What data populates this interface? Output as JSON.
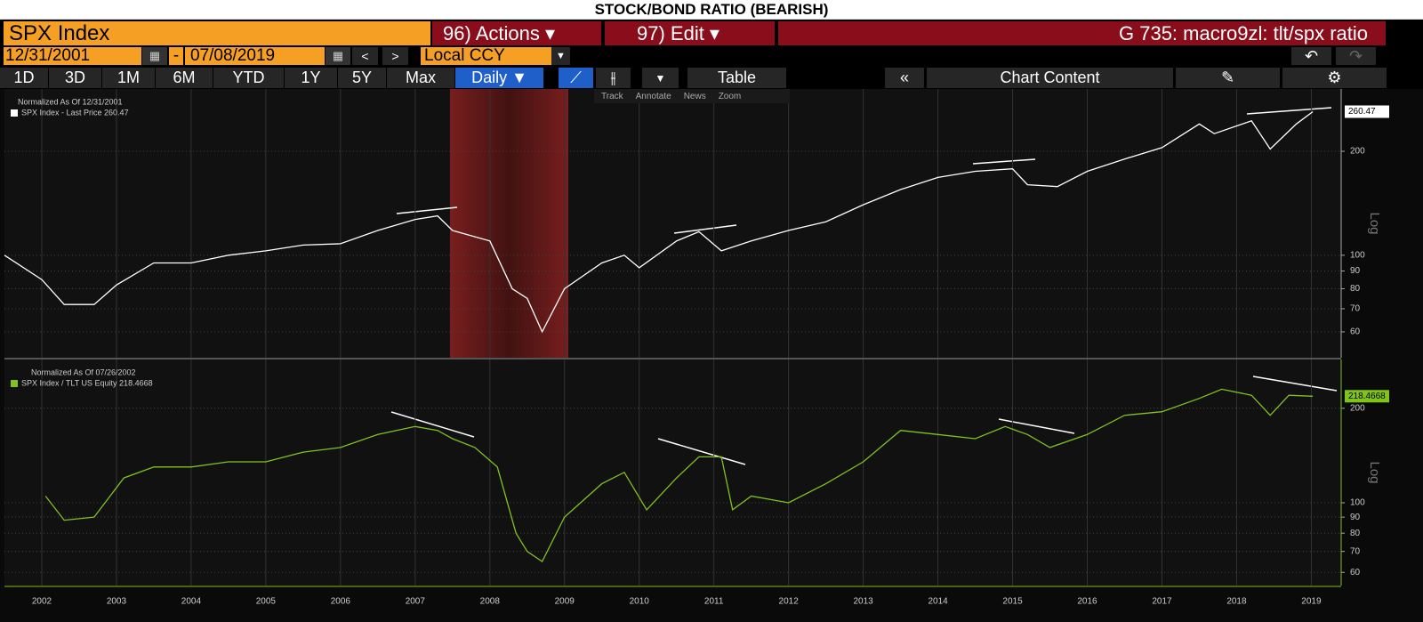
{
  "ui": {
    "title": "STOCK/BOND RATIO (BEARISH)",
    "ticker": "SPX Index",
    "actions": "96) Actions ▾",
    "edit": "97) Edit ▾",
    "function": "G 735: macro9zl: tlt/spx ratio",
    "start_date": "12/31/2001",
    "date_sep": "-",
    "end_date": "07/08/2019",
    "currency": "Local CCY",
    "periods": [
      "1D",
      "3D",
      "1M",
      "6M",
      "YTD",
      "1Y",
      "5Y",
      "Max"
    ],
    "frequency": "Daily ▼",
    "table": "Table",
    "chart_content": "Chart Content",
    "tools": [
      "Track",
      "Annotate",
      "News",
      "Zoom"
    ]
  },
  "chart_data": [
    {
      "type": "line",
      "legend_title": "Normalized As Of 12/31/2001",
      "y_label": "Log",
      "log_y": true,
      "grid": true,
      "xlim": [
        2002.0,
        2019.9
      ],
      "ylim": [
        50.5,
        303
      ],
      "yticks": [
        60,
        70,
        80,
        90,
        100,
        200
      ],
      "last_label": "260.47",
      "x": [
        2002.0,
        2002.5,
        2002.8,
        2003.2,
        2003.5,
        2004.0,
        2004.5,
        2005.0,
        2005.5,
        2006.0,
        2006.5,
        2007.0,
        2007.5,
        2007.8,
        2008.0,
        2008.5,
        2008.8,
        2009.0,
        2009.2,
        2009.5,
        2010.0,
        2010.3,
        2010.5,
        2011.0,
        2011.3,
        2011.6,
        2012.0,
        2012.5,
        2013.0,
        2013.5,
        2014.0,
        2014.5,
        2015.0,
        2015.5,
        2015.7,
        2016.1,
        2016.5,
        2017.0,
        2017.5,
        2018.0,
        2018.2,
        2018.7,
        2018.95,
        2019.3,
        2019.52
      ],
      "series": [
        {
          "name": "SPX Index - Last Price 260.47",
          "color": "#ffffff",
          "values": [
            100,
            85,
            72,
            72,
            82,
            95,
            95,
            100,
            103,
            107,
            108,
            118,
            127,
            130,
            118,
            110,
            80,
            75,
            60,
            80,
            95,
            100,
            92,
            110,
            117,
            103,
            110,
            118,
            125,
            140,
            155,
            168,
            175,
            178,
            160,
            158,
            175,
            190,
            205,
            240,
            225,
            245,
            203,
            240,
            260.47
          ]
        }
      ]
    },
    {
      "type": "line",
      "legend_title": "Normalized As Of 07/26/2002",
      "y_label": "Log",
      "log_y": true,
      "grid": true,
      "xlim": [
        2002.0,
        2019.9
      ],
      "ylim": [
        54.5,
        286
      ],
      "yticks": [
        60,
        70,
        80,
        90,
        100,
        200
      ],
      "xticks": [
        {
          "value": 2002.5,
          "label": "2002"
        },
        {
          "value": 2003.5,
          "label": "2003"
        },
        {
          "value": 2004.5,
          "label": "2004"
        },
        {
          "value": 2005.5,
          "label": "2005"
        },
        {
          "value": 2006.5,
          "label": "2006"
        },
        {
          "value": 2007.5,
          "label": "2007"
        },
        {
          "value": 2008.5,
          "label": "2008"
        },
        {
          "value": 2009.5,
          "label": "2009"
        },
        {
          "value": 2010.5,
          "label": "2010"
        },
        {
          "value": 2011.5,
          "label": "2011"
        },
        {
          "value": 2012.5,
          "label": "2012"
        },
        {
          "value": 2013.5,
          "label": "2013"
        },
        {
          "value": 2014.5,
          "label": "2014"
        },
        {
          "value": 2015.5,
          "label": "2015"
        },
        {
          "value": 2016.5,
          "label": "2016"
        },
        {
          "value": 2017.5,
          "label": "2017"
        },
        {
          "value": 2018.5,
          "label": "2018"
        },
        {
          "value": 2019.5,
          "label": "2019"
        }
      ],
      "last_label": "218.4668",
      "x": [
        2002.55,
        2002.8,
        2003.2,
        2003.6,
        2004.0,
        2004.5,
        2005.0,
        2005.5,
        2006.0,
        2006.5,
        2007.0,
        2007.5,
        2007.8,
        2008.0,
        2008.3,
        2008.6,
        2008.85,
        2009.0,
        2009.2,
        2009.5,
        2010.0,
        2010.3,
        2010.6,
        2011.0,
        2011.3,
        2011.6,
        2011.75,
        2012.0,
        2012.5,
        2013.0,
        2013.5,
        2014.0,
        2014.5,
        2015.0,
        2015.4,
        2015.7,
        2016.0,
        2016.5,
        2017.0,
        2017.5,
        2018.0,
        2018.3,
        2018.7,
        2018.95,
        2019.2,
        2019.52
      ],
      "series": [
        {
          "name": "SPX Index / TLT US Equity 218.4668",
          "color": "#7fc31c",
          "values": [
            105,
            88,
            90,
            120,
            130,
            130,
            135,
            135,
            145,
            150,
            165,
            175,
            170,
            160,
            150,
            130,
            80,
            70,
            65,
            90,
            115,
            125,
            95,
            120,
            140,
            140,
            95,
            105,
            100,
            115,
            135,
            170,
            165,
            160,
            175,
            165,
            150,
            165,
            190,
            195,
            215,
            230,
            220,
            190,
            220,
            218.4668
          ]
        }
      ]
    }
  ]
}
